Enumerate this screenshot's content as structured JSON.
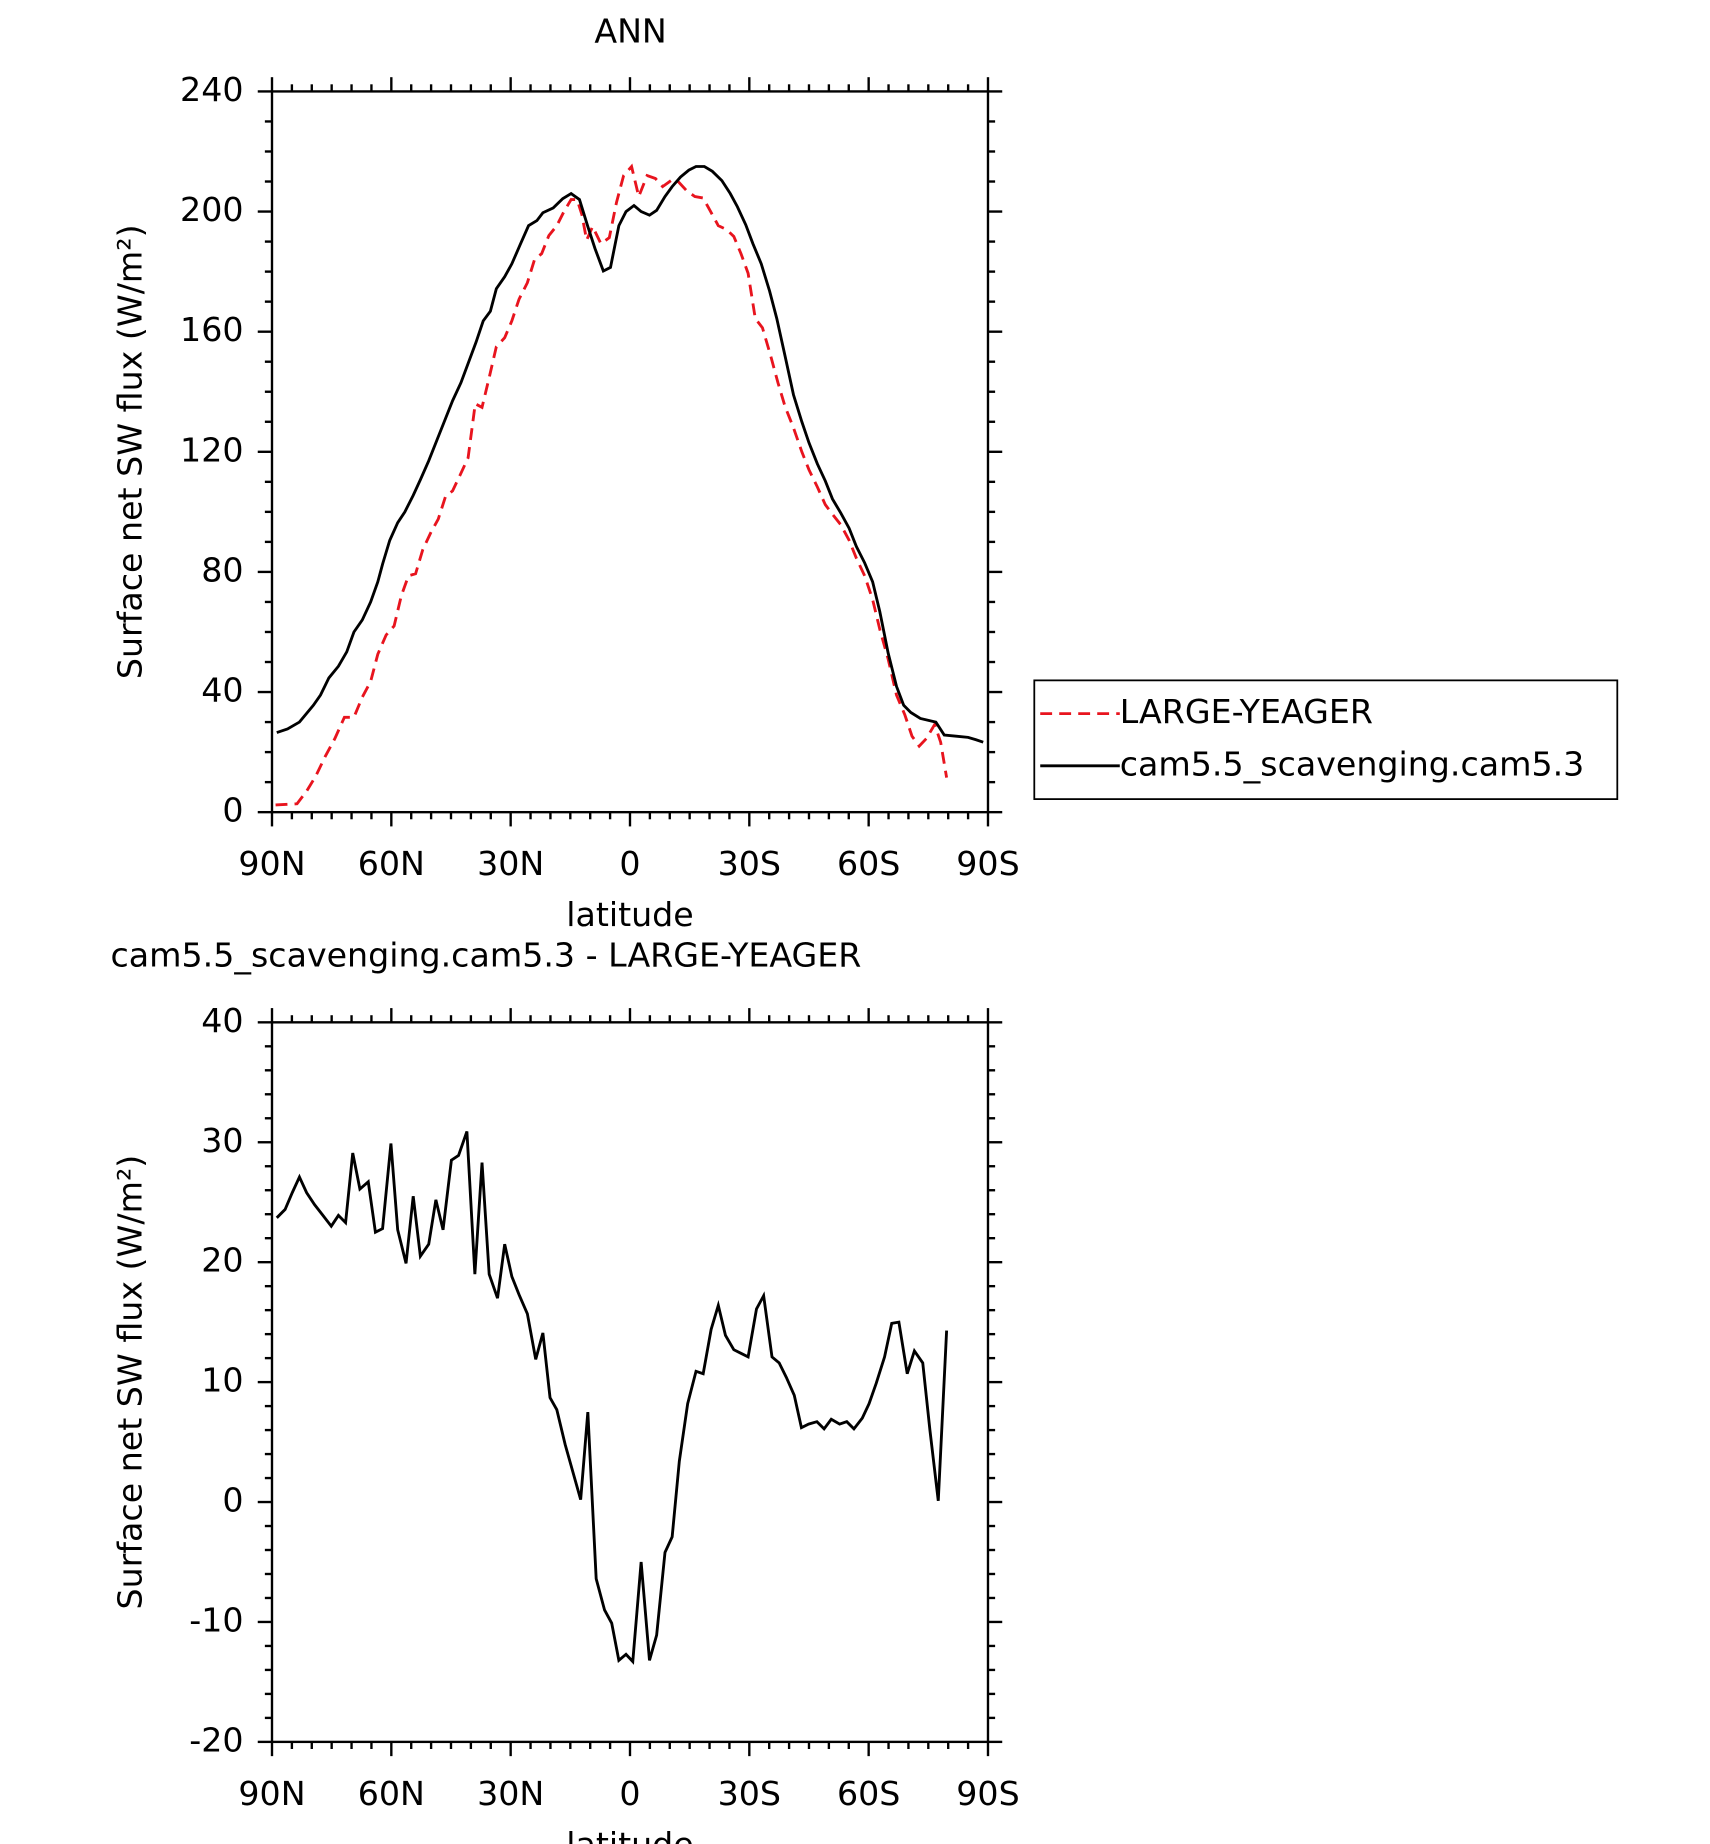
{
  "chart_data": [
    {
      "type": "line",
      "title": "ANN",
      "xlabel": "latitude",
      "ylabel": "Surface net SW flux (W/m²)",
      "xlim": [
        90,
        -90
      ],
      "xticks": [
        {
          "value": 90,
          "label": "90N"
        },
        {
          "value": 60,
          "label": "60N"
        },
        {
          "value": 30,
          "label": "30N"
        },
        0,
        {
          "value": -30,
          "label": "30S"
        },
        {
          "value": -60,
          "label": "60S"
        },
        {
          "value": -90,
          "label": "90S"
        }
      ],
      "ylim": [
        0,
        240
      ],
      "yticks": [
        0,
        40,
        80,
        120,
        160,
        200,
        240
      ],
      "legend": "right",
      "series": [
        {
          "name": "LARGE-YEAGER",
          "color": "#e8141e",
          "linestyle": "dashed",
          "x": [
            89.1,
            83.7,
            81.3,
            79,
            76.6,
            74.2,
            71.8,
            69.4,
            67.3,
            65.2,
            63.4,
            61.3,
            59.3,
            57.5,
            55.7,
            53.9,
            52.1,
            50,
            48.2,
            46.4,
            44.6,
            42.8,
            40.7,
            38.9,
            37.2,
            35.4,
            33.6,
            31.5,
            29.7,
            27.9,
            25.8,
            24,
            22.2,
            20.4,
            18.4,
            16.6,
            14.8,
            13.3,
            12.1,
            10.9,
            9.4,
            7.3,
            5.2,
            3.4,
            1.6,
            -0.4,
            -2.2,
            -4.3,
            -6.4,
            -8.2,
            -10.3,
            -12.1,
            -14.2,
            -16.3,
            -18.4,
            -20.1,
            -22.2,
            -24.3,
            -26.1,
            -27.9,
            -29.7,
            -31.5,
            -33.3,
            -35.4,
            -37.2,
            -39,
            -41.1,
            -43.2,
            -45,
            -47.1,
            -49.1,
            -50.9,
            -53,
            -55.1,
            -56.9,
            -59,
            -61,
            -62.8,
            -64.9,
            -67,
            -69.1,
            -70.9,
            -72.7,
            -74.5,
            -76.6,
            -78.1,
            -79.6
          ],
          "values": [
            2.4,
            2.8,
            7,
            12,
            18.6,
            24.5,
            31.6,
            31.6,
            38.3,
            43.5,
            52.6,
            59,
            62,
            72,
            78.7,
            79.4,
            87.4,
            93.3,
            97.6,
            105,
            107,
            112,
            118,
            136,
            134.8,
            144.7,
            155,
            158,
            163.6,
            170.8,
            176.3,
            184,
            186,
            192,
            195.3,
            200,
            204,
            204,
            199,
            190.5,
            195,
            189.3,
            191.3,
            203,
            212,
            215,
            205,
            212,
            211,
            208.3,
            210.3,
            210,
            207,
            205,
            204.5,
            200.4,
            195.3,
            194,
            191.7,
            186,
            179.4,
            164.4,
            161.3,
            151.8,
            143,
            135,
            128,
            120,
            114,
            108.3,
            102.4,
            99.2,
            95.7,
            90.5,
            84.6,
            78.7,
            70.8,
            60.9,
            51,
            39,
            32.4,
            25.3,
            22,
            24.5,
            29.2,
            23.3,
            11.5
          ]
        },
        {
          "name": "cam5.5_scavenging.cam5.3",
          "color": "#000000",
          "linestyle": "solid",
          "x": [
            88.8,
            86.1,
            83.1,
            79.6,
            77.8,
            75.7,
            73.3,
            71.2,
            69.4,
            67.3,
            65.2,
            63.4,
            62.2,
            60.4,
            58.4,
            56.6,
            54.5,
            52.7,
            50.6,
            48.5,
            46.4,
            44.6,
            42.5,
            40.7,
            38.7,
            36.9,
            35.1,
            33.6,
            31.5,
            29.7,
            27.6,
            25.5,
            23.4,
            21.9,
            19.3,
            16.9,
            14.8,
            12.7,
            10.6,
            8.8,
            6.7,
            4.9,
            2.8,
            1,
            -1,
            -2.8,
            -4.9,
            -6.7,
            -8.8,
            -10.6,
            -12.7,
            -14.8,
            -16.6,
            -18.7,
            -20.7,
            -23.1,
            -25.2,
            -27,
            -29.1,
            -30.9,
            -33,
            -35.1,
            -36.9,
            -39,
            -41.1,
            -43.2,
            -45,
            -47.1,
            -49.1,
            -50.9,
            -53,
            -55.1,
            -56.9,
            -59,
            -61,
            -62.8,
            -64.9,
            -67,
            -68.8,
            -70.6,
            -73,
            -76.9,
            -79,
            -82,
            -85,
            -87,
            -88.8
          ],
          "values": [
            26.5,
            27.7,
            30,
            35.6,
            39,
            44.7,
            48.6,
            53.4,
            60,
            64,
            70,
            76.7,
            82.6,
            90.5,
            96.4,
            100,
            105.5,
            110.7,
            117,
            124,
            131,
            137,
            143,
            149.4,
            156.5,
            163.6,
            166.8,
            174.3,
            178.3,
            182.6,
            189,
            195.3,
            197,
            199.6,
            201.2,
            204.3,
            206,
            204,
            195,
            187.7,
            180.2,
            181.4,
            195.3,
            200,
            202,
            200,
            198.8,
            200.4,
            205,
            208.3,
            211.5,
            213.8,
            215,
            215,
            213.4,
            210.3,
            206,
            201.6,
            195.6,
            189.3,
            182.6,
            173.5,
            164.4,
            151.8,
            139,
            130,
            123,
            116,
            110.3,
            104.3,
            99.6,
            94.5,
            88.5,
            83,
            76.7,
            66.8,
            53,
            41.9,
            35.6,
            33.2,
            31.2,
            30,
            25.7,
            25.3,
            24.9,
            24.1,
            23.3
          ]
        }
      ]
    },
    {
      "type": "line",
      "title": "cam5.5_scavenging.cam5.3 - LARGE-YEAGER",
      "xlabel": "latitude",
      "ylabel": "Surface net SW flux (W/m²)",
      "xlim": [
        90,
        -90
      ],
      "xticks": [
        {
          "value": 90,
          "label": "90N"
        },
        {
          "value": 60,
          "label": "60N"
        },
        {
          "value": 30,
          "label": "30N"
        },
        0,
        {
          "value": -30,
          "label": "30S"
        },
        {
          "value": -60,
          "label": "60S"
        },
        {
          "value": -90,
          "label": "90S"
        }
      ],
      "ylim": [
        -20,
        40
      ],
      "yticks": [
        -20,
        -10,
        0,
        10,
        20,
        30,
        40
      ],
      "series": [
        {
          "color": "#000000",
          "linestyle": "solid",
          "x": [
            88.8,
            86.7,
            84.9,
            83.1,
            81.3,
            79.3,
            77.2,
            75.1,
            73.3,
            71.5,
            69.7,
            67.9,
            65.8,
            64,
            62.2,
            60.1,
            58.4,
            56.3,
            54.5,
            52.7,
            50.6,
            48.8,
            47,
            44.9,
            43.1,
            41,
            39,
            37.2,
            35.4,
            33.3,
            31.5,
            29.7,
            27.9,
            25.8,
            23.7,
            21.9,
            20.1,
            18.4,
            16.3,
            12.4,
            10.6,
            8.5,
            6.4,
            4.6,
            2.8,
            1,
            -0.7,
            -2.8,
            -4.9,
            -6.7,
            -8.8,
            -10.6,
            -12.4,
            -14.5,
            -16.6,
            -18.4,
            -20.4,
            -22.2,
            -24,
            -26.1,
            -27.9,
            -29.7,
            -31.8,
            -33.6,
            -35.7,
            -37.5,
            -39.3,
            -41.3,
            -43.1,
            -44.9,
            -47,
            -48.8,
            -50.6,
            -52.7,
            -54.5,
            -56.3,
            -58.4,
            -60.1,
            -61.9,
            -64,
            -65.8,
            -67.6,
            -69.7,
            -71.5,
            -73.6,
            -75.4,
            -77.5,
            -79.6
          ],
          "values": [
            23.7,
            24.4,
            25.8,
            27.1,
            25.8,
            24.8,
            23.9,
            23,
            23.9,
            23.3,
            29.1,
            26.1,
            26.7,
            22.5,
            22.8,
            29.9,
            22.7,
            19.9,
            25.5,
            20.5,
            21.5,
            25.2,
            22.7,
            28.5,
            28.9,
            30.9,
            19,
            28.3,
            19,
            17,
            21.5,
            18.8,
            17.3,
            15.7,
            11.9,
            14.1,
            8.7,
            7.7,
            4.8,
            0.2,
            7.5,
            -6.4,
            -9,
            -10.1,
            -13.2,
            -12.7,
            -13.3,
            -5,
            -13.2,
            -11.1,
            -4.2,
            -2.9,
            3.4,
            8.2,
            10.9,
            10.7,
            14.4,
            16.4,
            13.9,
            12.7,
            12.4,
            12.1,
            16.1,
            17.2,
            12.1,
            11.6,
            10.4,
            8.9,
            6.2,
            6.5,
            6.7,
            6.1,
            6.9,
            6.5,
            6.7,
            6.1,
            7,
            8.2,
            9.9,
            12.1,
            14.9,
            15,
            10.7,
            12.6,
            11.6,
            6,
            0.1,
            14.3
          ]
        }
      ]
    }
  ]
}
